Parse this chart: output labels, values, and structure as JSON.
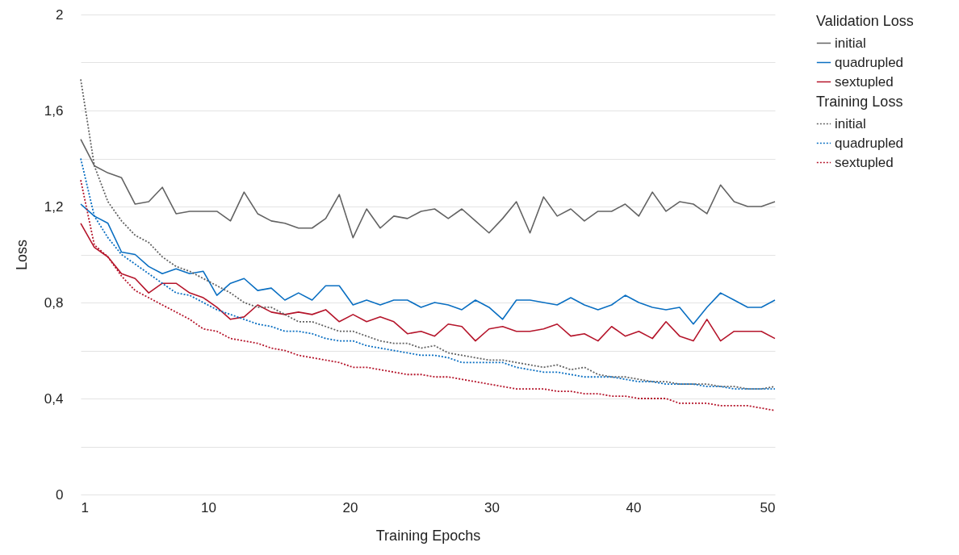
{
  "chart_data": {
    "type": "line",
    "xlabel": "Training Epochs",
    "ylabel": "Loss",
    "legend_title": [
      "Validation Loss",
      "Training Loss"
    ],
    "x": [
      1,
      1.96,
      2.92,
      3.88,
      4.84,
      5.8,
      6.76,
      7.73,
      8.69,
      9.65,
      10.61,
      11.57,
      12.53,
      13.49,
      14.45,
      15.41,
      16.37,
      17.33,
      18.29,
      19.25,
      20.22,
      21.18,
      22.14,
      23.1,
      24.06,
      25.02,
      25.98,
      26.94,
      27.9,
      28.86,
      29.82,
      30.78,
      31.75,
      32.71,
      33.67,
      34.63,
      35.59,
      36.55,
      37.51,
      38.47,
      39.43,
      40.39,
      41.35,
      42.31,
      43.27,
      44.24,
      45.2,
      46.16,
      47.12,
      48.08,
      49.04,
      50
    ],
    "xlim": [
      1,
      50
    ],
    "xticks": [
      1,
      10,
      20,
      30,
      40,
      50
    ],
    "ylim": [
      0,
      2
    ],
    "yticks": [
      0,
      {
        "value": 0.2,
        "label": null
      },
      {
        "value": 0.4,
        "label": "0,4"
      },
      {
        "value": 0.6,
        "label": null
      },
      {
        "value": 0.8,
        "label": "0,8"
      },
      {
        "value": 1.0,
        "label": null
      },
      {
        "value": 1.2,
        "label": "1,2"
      },
      {
        "value": 1.4,
        "label": null
      },
      {
        "value": 1.6,
        "label": "1,6"
      },
      {
        "value": 1.8,
        "label": null
      },
      2
    ],
    "grid": "y",
    "legend": "right",
    "marker": "none",
    "series": [
      {
        "name": "initial",
        "color": "#636363",
        "line_style": "solid",
        "values": [
          1.48,
          1.37,
          1.34,
          1.32,
          1.21,
          1.22,
          1.28,
          1.17,
          1.18,
          1.18,
          1.18,
          1.14,
          1.26,
          1.17,
          1.14,
          1.13,
          1.11,
          1.11,
          1.15,
          1.25,
          1.07,
          1.19,
          1.11,
          1.16,
          1.15,
          1.18,
          1.19,
          1.15,
          1.19,
          1.14,
          1.09,
          1.15,
          1.22,
          1.09,
          1.24,
          1.16,
          1.19,
          1.14,
          1.18,
          1.18,
          1.21,
          1.16,
          1.26,
          1.18,
          1.22,
          1.21,
          1.17,
          1.29,
          1.22,
          1.2,
          1.2,
          1.22
        ]
      },
      {
        "name": "quadrupled",
        "color": "#0a6fc2",
        "line_style": "solid",
        "values": [
          1.21,
          1.16,
          1.13,
          1.01,
          1.0,
          0.95,
          0.92,
          0.94,
          0.92,
          0.93,
          0.83,
          0.88,
          0.9,
          0.85,
          0.86,
          0.81,
          0.84,
          0.81,
          0.87,
          0.87,
          0.79,
          0.81,
          0.79,
          0.81,
          0.81,
          0.78,
          0.8,
          0.79,
          0.77,
          0.81,
          0.78,
          0.73,
          0.81,
          0.81,
          0.8,
          0.79,
          0.82,
          0.79,
          0.77,
          0.79,
          0.83,
          0.8,
          0.78,
          0.77,
          0.78,
          0.71,
          0.78,
          0.84,
          0.81,
          0.78,
          0.78,
          0.81
        ]
      },
      {
        "name": "sextupled",
        "color": "#b5152b",
        "line_style": "solid",
        "values": [
          1.13,
          1.03,
          0.99,
          0.92,
          0.9,
          0.84,
          0.88,
          0.88,
          0.84,
          0.82,
          0.78,
          0.73,
          0.74,
          0.79,
          0.76,
          0.75,
          0.76,
          0.75,
          0.77,
          0.72,
          0.75,
          0.72,
          0.74,
          0.72,
          0.67,
          0.68,
          0.66,
          0.71,
          0.7,
          0.64,
          0.69,
          0.7,
          0.68,
          0.68,
          0.69,
          0.71,
          0.66,
          0.67,
          0.64,
          0.7,
          0.66,
          0.68,
          0.65,
          0.72,
          0.66,
          0.64,
          0.73,
          0.64,
          0.68,
          0.68,
          0.68,
          0.65
        ]
      },
      {
        "name": "initial",
        "color": "#636363",
        "line_style": "dotted",
        "values": [
          1.73,
          1.37,
          1.22,
          1.14,
          1.08,
          1.05,
          0.99,
          0.95,
          0.93,
          0.9,
          0.87,
          0.84,
          0.8,
          0.78,
          0.78,
          0.75,
          0.72,
          0.72,
          0.7,
          0.68,
          0.68,
          0.66,
          0.64,
          0.63,
          0.63,
          0.61,
          0.62,
          0.59,
          0.58,
          0.57,
          0.56,
          0.56,
          0.55,
          0.54,
          0.53,
          0.54,
          0.52,
          0.53,
          0.5,
          0.49,
          0.49,
          0.48,
          0.47,
          0.47,
          0.46,
          0.46,
          0.46,
          0.45,
          0.45,
          0.44,
          0.44,
          0.45
        ]
      },
      {
        "name": "quadrupled",
        "color": "#0a6fc2",
        "line_style": "dotted",
        "values": [
          1.4,
          1.16,
          1.07,
          1.0,
          0.96,
          0.92,
          0.88,
          0.84,
          0.83,
          0.8,
          0.77,
          0.75,
          0.73,
          0.71,
          0.7,
          0.68,
          0.68,
          0.67,
          0.65,
          0.64,
          0.64,
          0.62,
          0.61,
          0.6,
          0.59,
          0.58,
          0.58,
          0.57,
          0.55,
          0.55,
          0.55,
          0.55,
          0.53,
          0.52,
          0.51,
          0.51,
          0.5,
          0.49,
          0.49,
          0.49,
          0.48,
          0.47,
          0.47,
          0.46,
          0.46,
          0.46,
          0.45,
          0.45,
          0.44,
          0.44,
          0.44,
          0.44
        ]
      },
      {
        "name": "sextupled",
        "color": "#b5152b",
        "line_style": "dotted",
        "values": [
          1.31,
          1.04,
          0.99,
          0.91,
          0.85,
          0.82,
          0.79,
          0.76,
          0.73,
          0.69,
          0.68,
          0.65,
          0.64,
          0.63,
          0.61,
          0.6,
          0.58,
          0.57,
          0.56,
          0.55,
          0.53,
          0.53,
          0.52,
          0.51,
          0.5,
          0.5,
          0.49,
          0.49,
          0.48,
          0.47,
          0.46,
          0.45,
          0.44,
          0.44,
          0.44,
          0.43,
          0.43,
          0.42,
          0.42,
          0.41,
          0.41,
          0.4,
          0.4,
          0.4,
          0.38,
          0.38,
          0.38,
          0.37,
          0.37,
          0.37,
          0.36,
          0.35
        ]
      }
    ]
  }
}
